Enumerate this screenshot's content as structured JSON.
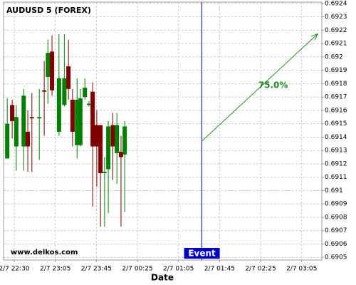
{
  "chart_data": {
    "type": "candlestick",
    "title": "AUDUSD 5 (FOREX)",
    "x_label": "Date",
    "watermark": "www.delkos.com",
    "xticks": [
      {
        "value": 0,
        "label": "2/7 22:30"
      },
      {
        "value": 1,
        "label": "2/7 23:05"
      },
      {
        "value": 2,
        "label": "2/7 23:45"
      },
      {
        "value": 3,
        "label": "2/7 00:25"
      },
      {
        "value": 4,
        "label": "2/7 01:05"
      },
      {
        "value": 5,
        "label": "2/7 01:45"
      },
      {
        "value": 6,
        "label": "2/7 02:25"
      },
      {
        "value": 7,
        "label": "2/7 03:05"
      }
    ],
    "xlim": [
      -0.26,
      7.49
    ],
    "ylim": [
      0.69048,
      0.69241
    ],
    "yticks": [
      0.6905,
      0.6906,
      0.6907,
      0.6908,
      0.6909,
      0.691,
      0.6911,
      0.6912,
      0.6913,
      0.6914,
      0.6915,
      0.6916,
      0.6917,
      0.6918,
      0.6919,
      0.692,
      0.6921,
      0.6922,
      0.6923,
      0.6924
    ],
    "grid": true,
    "up_color": "#008000",
    "down_color": "#800000",
    "x": [
      -0.17,
      -0.05,
      0.05,
      0.23,
      0.33,
      0.43,
      0.61,
      0.73,
      0.82,
      0.92,
      1.09,
      1.22,
      1.32,
      1.42,
      1.53,
      1.61,
      1.72,
      1.82,
      1.91,
      2.01,
      2.1,
      2.2,
      2.29,
      2.4,
      2.5,
      2.6,
      2.69
    ],
    "open": [
      0.69124,
      0.69164,
      0.69133,
      0.69133,
      0.69144,
      0.69155,
      0.69154,
      0.69175,
      0.69185,
      0.69204,
      0.69144,
      0.69164,
      0.69193,
      0.69168,
      0.69134,
      0.69134,
      0.6917,
      0.69164,
      0.69174,
      0.69149,
      0.69149,
      0.69113,
      0.69116,
      0.69149,
      0.69128,
      0.69129,
      0.69127
    ],
    "high": [
      0.69169,
      0.69168,
      0.69164,
      0.69176,
      0.6916,
      0.69173,
      0.69176,
      0.69197,
      0.69213,
      0.69216,
      0.69217,
      0.69217,
      0.69213,
      0.69176,
      0.69184,
      0.69176,
      0.69184,
      0.69167,
      0.69181,
      0.6916,
      0.69149,
      0.69125,
      0.69152,
      0.69158,
      0.69158,
      0.69141,
      0.69152
    ],
    "low": [
      0.69124,
      0.69139,
      0.69115,
      0.69115,
      0.69114,
      0.69114,
      0.69123,
      0.69141,
      0.69165,
      0.69171,
      0.69141,
      0.69163,
      0.69168,
      0.69133,
      0.69124,
      0.69133,
      0.69168,
      0.69163,
      0.69088,
      0.69103,
      0.69073,
      0.69073,
      0.69083,
      0.69108,
      0.69105,
      0.69073,
      0.69084
    ],
    "close": [
      0.6915,
      0.69152,
      0.69155,
      0.69171,
      0.69133,
      0.69154,
      0.69155,
      0.69174,
      0.69203,
      0.69175,
      0.69184,
      0.69184,
      0.69176,
      0.69144,
      0.69168,
      0.69169,
      0.69177,
      0.69165,
      0.69133,
      0.69133,
      0.69113,
      0.69114,
      0.69148,
      0.69133,
      0.69149,
      0.69125,
      0.69148
    ],
    "event": {
      "label": "Event",
      "x": 4.57,
      "color": "#0000cc"
    },
    "arrow": {
      "label": "75.0%",
      "x": [
        4.57,
        7.38
      ],
      "y": [
        0.69137,
        0.69217
      ],
      "color": "#228b22"
    }
  }
}
